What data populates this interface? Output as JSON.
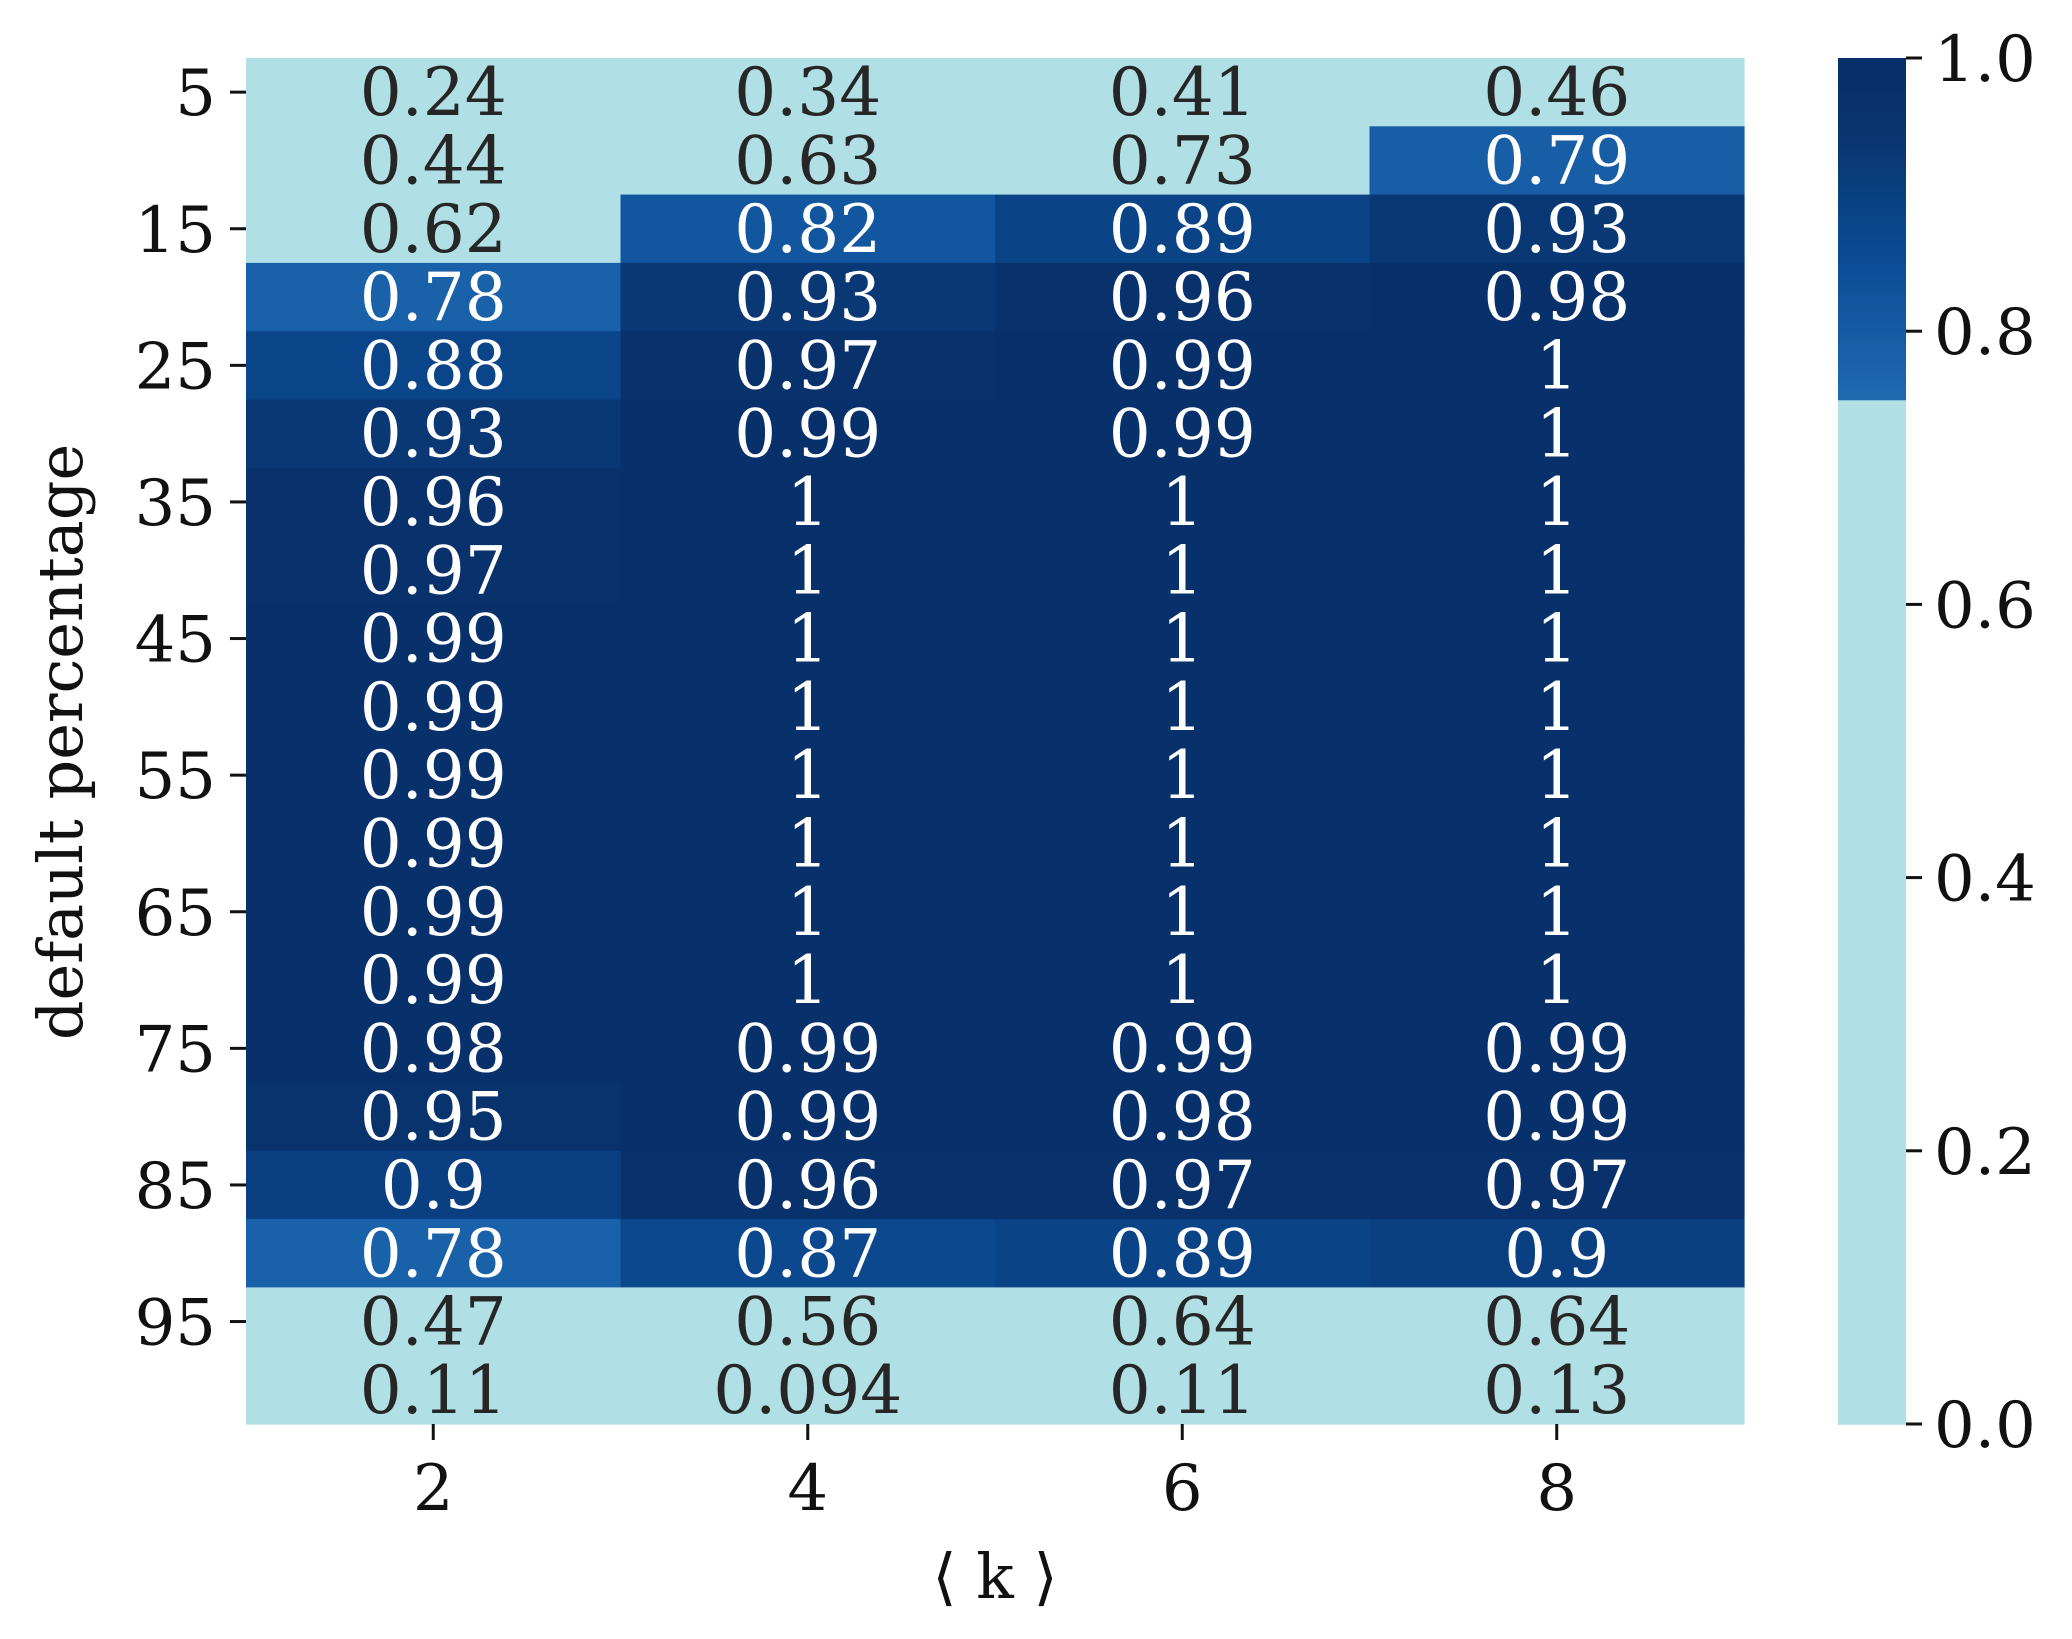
{
  "chart_data": {
    "type": "heatmap",
    "xlabel": "⟨ k ⟩",
    "ylabel": "default percentage",
    "x": [
      2,
      4,
      6,
      8
    ],
    "x_tick_labels": [
      "2",
      "4",
      "6",
      "8"
    ],
    "y_tick_labels": [
      "5",
      "15",
      "25",
      "35",
      "45",
      "55",
      "65",
      "75",
      "85",
      "95"
    ],
    "y_tick_rows": [
      0,
      2,
      4,
      6,
      8,
      10,
      12,
      14,
      16,
      18
    ],
    "values": [
      [
        0.24,
        0.34,
        0.41,
        0.46
      ],
      [
        0.44,
        0.63,
        0.73,
        0.79
      ],
      [
        0.62,
        0.82,
        0.89,
        0.93
      ],
      [
        0.78,
        0.93,
        0.96,
        0.98
      ],
      [
        0.88,
        0.97,
        0.99,
        1
      ],
      [
        0.93,
        0.99,
        0.99,
        1
      ],
      [
        0.96,
        1,
        1,
        1
      ],
      [
        0.97,
        1,
        1,
        1
      ],
      [
        0.99,
        1,
        1,
        1
      ],
      [
        0.99,
        1,
        1,
        1
      ],
      [
        0.99,
        1,
        1,
        1
      ],
      [
        0.99,
        1,
        1,
        1
      ],
      [
        0.99,
        1,
        1,
        1
      ],
      [
        0.99,
        1,
        1,
        1
      ],
      [
        0.98,
        0.99,
        0.99,
        0.99
      ],
      [
        0.95,
        0.99,
        0.98,
        0.99
      ],
      [
        0.9,
        0.96,
        0.97,
        0.97
      ],
      [
        0.78,
        0.87,
        0.89,
        0.9
      ],
      [
        0.47,
        0.56,
        0.64,
        0.64
      ],
      [
        0.11,
        0.094,
        0.11,
        0.13
      ]
    ],
    "colorbar": {
      "range": [
        0.0,
        1.0
      ],
      "threshold": 0.75,
      "ticks": [
        0.0,
        0.2,
        0.4,
        0.6,
        0.8,
        1.0
      ],
      "tick_labels": [
        "0.0",
        "0.2",
        "0.4",
        "0.6",
        "0.8",
        "1.0"
      ]
    },
    "colors": {
      "below_threshold": "#b0e0e6",
      "stops": [
        {
          "v": 0.75,
          "c": "#1f6ab0"
        },
        {
          "v": 0.85,
          "c": "#0b4d96"
        },
        {
          "v": 0.95,
          "c": "#09336d"
        },
        {
          "v": 1.0,
          "c": "#08306b"
        }
      ],
      "text_dark": "#262626",
      "text_light": "#ffffff"
    },
    "grid": false,
    "legend": "colorbar-right"
  }
}
